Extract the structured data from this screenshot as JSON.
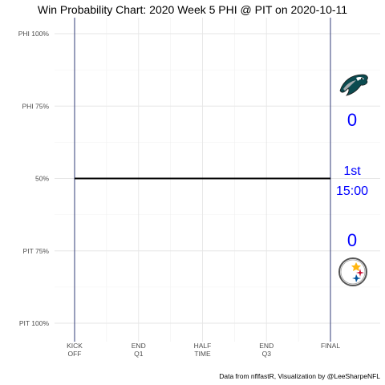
{
  "chart_data": {
    "type": "line",
    "title": "Win Probability Chart: 2020 Week 5 PHI @ PIT on 2020-10-11",
    "y_ticks": [
      {
        "label": "PHI 100%",
        "value": 0
      },
      {
        "label": "PHI 75%",
        "value": 25
      },
      {
        "label": "50%",
        "value": 50
      },
      {
        "label": "PIT 75%",
        "value": 75
      },
      {
        "label": "PIT 100%",
        "value": 100
      }
    ],
    "x_ticks": [
      {
        "lines": [
          "KICK",
          "OFF"
        ],
        "value": 0
      },
      {
        "lines": [
          "END",
          "Q1"
        ],
        "value": 900
      },
      {
        "lines": [
          "HALF",
          "TIME"
        ],
        "value": 1800
      },
      {
        "lines": [
          "END",
          "Q3"
        ],
        "value": 2700
      },
      {
        "lines": [
          "FINAL"
        ],
        "value": 3600
      }
    ],
    "xlim": [
      0,
      3600
    ],
    "ylim": [
      0,
      100
    ],
    "series": [
      {
        "x": [
          0,
          3600
        ],
        "y": [
          50,
          50
        ],
        "color": "#000000"
      }
    ],
    "grid": true,
    "boundary_line_color": "#1f2a6b",
    "caption": "Data from nflfastR, Visualization by @LeeSharpeNFL",
    "away": {
      "abbr": "PHI",
      "score": "0",
      "logo": "eagles-logo"
    },
    "home": {
      "abbr": "PIT",
      "score": "0",
      "logo": "steelers-logo"
    },
    "game_state": {
      "quarter": "1st",
      "clock": "15:00"
    },
    "score_color": "#0000ff"
  }
}
